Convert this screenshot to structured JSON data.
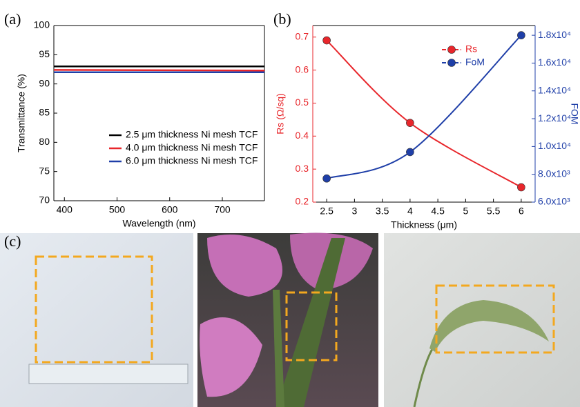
{
  "chart_data": [
    {
      "type": "line",
      "panel_label": "(a)",
      "xlabel": "Wavelength (nm)",
      "ylabel": "Transmittance (%)",
      "x": [
        380,
        780
      ],
      "series": [
        {
          "name": "2.5 μm thickness Ni mesh TCF",
          "color": "#000000",
          "values": [
            93.0,
            93.0
          ]
        },
        {
          "name": "4.0 μm thickness Ni mesh TCF",
          "color": "#e8262b",
          "values": [
            92.4,
            92.3
          ]
        },
        {
          "name": "6.0 μm thickness Ni mesh TCF",
          "color": "#1f3fa8",
          "values": [
            92.0,
            92.0
          ]
        }
      ],
      "xlim": [
        380,
        780
      ],
      "xticks": [
        400,
        500,
        600,
        700
      ],
      "ylim": [
        70,
        100
      ],
      "yticks": [
        70,
        75,
        80,
        85,
        90,
        95,
        100
      ]
    },
    {
      "type": "line",
      "panel_label": "(b)",
      "xlabel": "Thickness (μm)",
      "ylabel": "Rs (Ω/sq)",
      "y2label": "FOM",
      "smooth": true,
      "markers": true,
      "x": [
        2.5,
        4.0,
        6.0
      ],
      "series": [
        {
          "name": "Rs",
          "color": "#e8262b",
          "values": [
            0.69,
            0.44,
            0.245
          ]
        },
        {
          "name": "FoM",
          "color": "#1f3fa8",
          "axis": "y2",
          "values": [
            7700,
            9600,
            18000
          ]
        }
      ],
      "xlim": [
        2.25,
        6.25
      ],
      "xticks": [
        2.5,
        3.0,
        3.5,
        4.0,
        4.5,
        5.0,
        5.5,
        6.0
      ],
      "ylim": [
        0.2,
        0.735
      ],
      "yticks": [
        0.2,
        0.3,
        0.4,
        0.5,
        0.6,
        0.7
      ],
      "y2lim": [
        6000,
        18700
      ],
      "y2ticks": [
        {
          "value": 6000,
          "label": "6.0x10³"
        },
        {
          "value": 8000,
          "label": "8.0x10³"
        },
        {
          "value": 10000,
          "label": "1.0x10⁴"
        },
        {
          "value": 12000,
          "label": "1.2x10⁴"
        },
        {
          "value": 14000,
          "label": "1.4x10⁴"
        },
        {
          "value": 16000,
          "label": "1.6x10⁴"
        },
        {
          "value": 18000,
          "label": "1.8x10⁴"
        }
      ]
    }
  ],
  "photo_panel": {
    "label": "(c)"
  }
}
